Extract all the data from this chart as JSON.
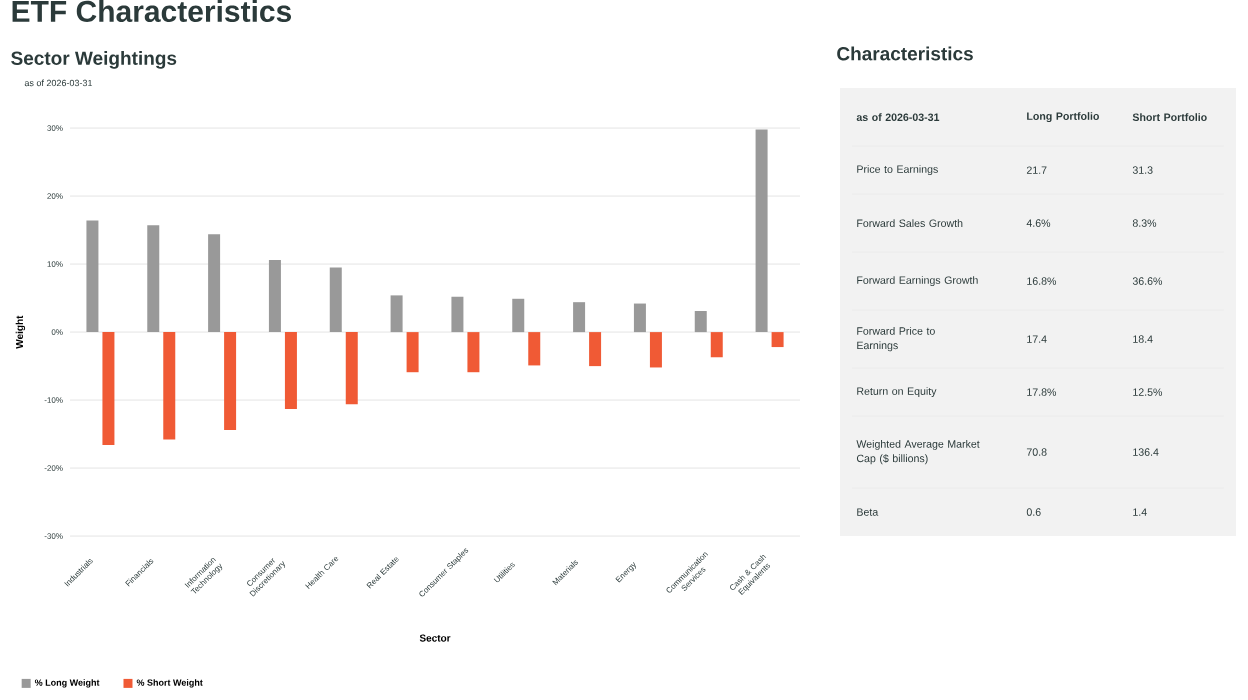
{
  "chart_data": [
    {
      "type": "bar",
      "title": "ETF Characteristics",
      "subtitle": "Sector Weightings",
      "annotations": [
        "as of 2026-03-31"
      ],
      "categories": [
        "Industrials",
        "Financials",
        "Information Technology",
        "Consumer Discretionary",
        "Health Care",
        "Real Estate",
        "Consumer Staples",
        "Utilities",
        "Materials",
        "Energy",
        "Communication Services",
        "Cash & Cash Equivalents"
      ],
      "series": [
        {
          "name": "% Long Weight",
          "color": "#999999",
          "values": [
            16.4,
            15.7,
            14.4,
            10.6,
            9.5,
            5.4,
            5.2,
            4.9,
            4.4,
            4.2,
            3.1,
            29.8
          ]
        },
        {
          "name": "% Short Weight",
          "color": "#f05a35",
          "values": [
            -16.6,
            -15.8,
            -14.4,
            -11.3,
            -10.6,
            -5.9,
            -5.9,
            -4.9,
            -5.0,
            -5.2,
            -3.7,
            -2.2
          ]
        }
      ],
      "xlabel": "Sector",
      "ylabel": "Weight",
      "ylim": [
        -30,
        30
      ],
      "yticks": [
        {
          "value": -30,
          "label": "-30%"
        },
        {
          "value": -20,
          "label": "-20%"
        },
        {
          "value": -10,
          "label": "-10%"
        },
        {
          "value": 0,
          "label": "0%"
        },
        {
          "value": 10,
          "label": "10%"
        },
        {
          "value": 20,
          "label": "20%"
        },
        {
          "value": 30,
          "label": "30%"
        }
      ],
      "grid": "y",
      "legend": "bottom left"
    },
    {
      "type": "other",
      "title": "Characteristics",
      "annotations": [
        "as of 2026-03-31",
        "Long Portfolio",
        "Short Portfolio",
        "Price to Earnings",
        "21.7",
        "31.3",
        "Forward Sales Growth",
        "4.6%",
        "8.3%",
        "Forward Earnings Growth",
        "16.8%",
        "36.6%",
        "Forward Price to Earnings",
        "17.4",
        "18.4",
        "Return on Equity",
        "17.8%",
        "12.5%",
        "Weighted Average Market Cap ($ billions)",
        "70.8",
        "136.4",
        "Beta",
        "0.6",
        "1.4"
      ]
    }
  ]
}
